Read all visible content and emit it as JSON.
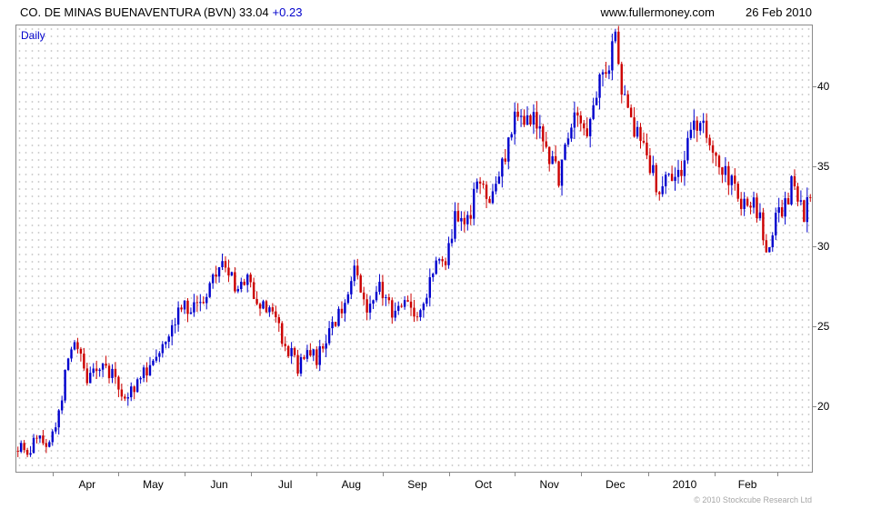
{
  "header": {
    "title": "CO. DE MINAS BUENAVENTURA (BVN) 33.04",
    "change": "+0.23",
    "website": "www.fullermoney.com",
    "date": "26 Feb 2010"
  },
  "chart": {
    "timeframe": "Daily",
    "copyright": "© 2010 Stockcube Research Ltd"
  },
  "chart_data": {
    "type": "candlestick",
    "title": "CO. DE MINAS BUENAVENTURA (BVN)",
    "timeframe": "Daily",
    "last_close": 33.04,
    "change": 0.23,
    "ylim": [
      15.9,
      43.8
    ],
    "y_ticks": [
      20,
      25,
      30,
      35,
      40
    ],
    "x_labels": [
      {
        "label": "Apr",
        "day": 22
      },
      {
        "label": "May",
        "day": 43
      },
      {
        "label": "Jun",
        "day": 64
      },
      {
        "label": "Jul",
        "day": 85
      },
      {
        "label": "Aug",
        "day": 106
      },
      {
        "label": "Sep",
        "day": 127
      },
      {
        "label": "Oct",
        "day": 148
      },
      {
        "label": "Nov",
        "day": 169
      },
      {
        "label": "Dec",
        "day": 190
      },
      {
        "label": "2010",
        "day": 212
      },
      {
        "label": "Feb",
        "day": 232
      }
    ],
    "num_candles": 253,
    "up_color": "#0000cd",
    "down_color": "#cc0000",
    "grid": "dotted",
    "trend_pivots": [
      [
        0,
        17.5
      ],
      [
        3,
        16.8
      ],
      [
        6,
        18.3
      ],
      [
        9,
        17.2
      ],
      [
        13,
        19.5
      ],
      [
        16,
        23.0
      ],
      [
        18,
        24.3
      ],
      [
        22,
        21.6
      ],
      [
        26,
        22.6
      ],
      [
        30,
        22.0
      ],
      [
        34,
        20.6
      ],
      [
        38,
        21.5
      ],
      [
        43,
        23.0
      ],
      [
        47,
        24.5
      ],
      [
        52,
        26.3
      ],
      [
        56,
        26.0
      ],
      [
        60,
        27.0
      ],
      [
        64,
        28.6
      ],
      [
        66,
        29.1
      ],
      [
        69,
        27.3
      ],
      [
        73,
        27.9
      ],
      [
        78,
        26.2
      ],
      [
        82,
        25.5
      ],
      [
        85,
        23.8
      ],
      [
        89,
        22.5
      ],
      [
        92,
        23.6
      ],
      [
        95,
        22.8
      ],
      [
        100,
        25.2
      ],
      [
        104,
        26.2
      ],
      [
        107,
        28.2
      ],
      [
        111,
        26.4
      ],
      [
        115,
        27.4
      ],
      [
        119,
        25.9
      ],
      [
        123,
        26.8
      ],
      [
        127,
        25.5
      ],
      [
        130,
        26.6
      ],
      [
        133,
        29.6
      ],
      [
        136,
        29.2
      ],
      [
        139,
        31.6
      ],
      [
        142,
        30.9
      ],
      [
        146,
        33.6
      ],
      [
        150,
        33.2
      ],
      [
        153,
        34.3
      ],
      [
        156,
        36.6
      ],
      [
        159,
        38.8
      ],
      [
        161,
        37.6
      ],
      [
        164,
        38.6
      ],
      [
        168,
        36.0
      ],
      [
        172,
        34.3
      ],
      [
        175,
        36.6
      ],
      [
        178,
        38.6
      ],
      [
        181,
        37.2
      ],
      [
        184,
        39.6
      ],
      [
        187,
        40.8
      ],
      [
        190,
        42.9
      ],
      [
        192,
        40.2
      ],
      [
        195,
        37.6
      ],
      [
        198,
        36.8
      ],
      [
        201,
        35.1
      ],
      [
        204,
        33.4
      ],
      [
        207,
        34.6
      ],
      [
        210,
        34.1
      ],
      [
        213,
        36.1
      ],
      [
        216,
        37.9
      ],
      [
        219,
        37.1
      ],
      [
        222,
        35.6
      ],
      [
        225,
        34.4
      ],
      [
        228,
        33.6
      ],
      [
        231,
        32.6
      ],
      [
        234,
        33.1
      ],
      [
        237,
        30.9
      ],
      [
        238,
        29.6
      ],
      [
        241,
        31.6
      ],
      [
        244,
        32.6
      ],
      [
        246,
        33.9
      ],
      [
        248,
        32.9
      ],
      [
        250,
        31.9
      ],
      [
        252,
        33.04
      ]
    ]
  }
}
